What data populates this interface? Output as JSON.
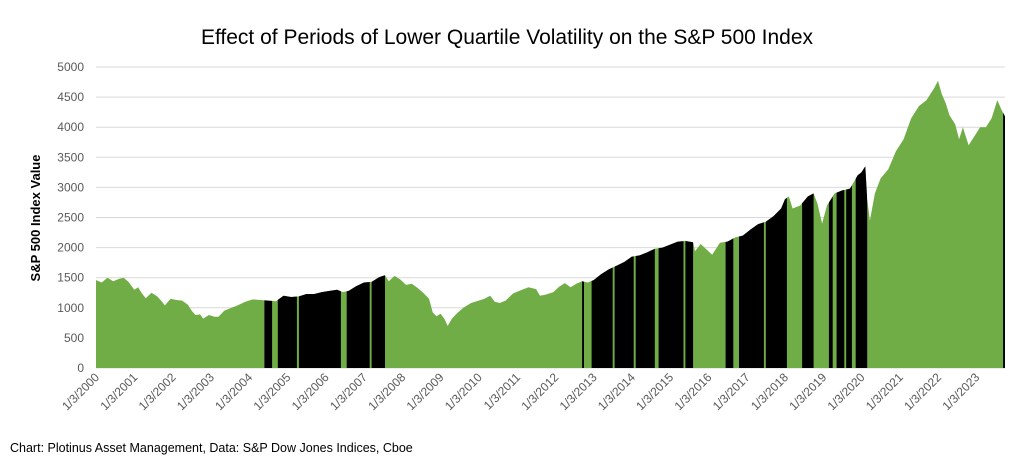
{
  "chart_data": {
    "type": "area",
    "title": "Effect of Periods of Lower Quartile Volatility on the S&P 500 Index",
    "ylabel": "S&P 500 Index  Value",
    "xlabel": "",
    "ylim": [
      0,
      5000
    ],
    "yticks": [
      "0",
      "500",
      "1000",
      "1500",
      "2000",
      "2500",
      "3000",
      "3500",
      "4000",
      "4500",
      "5000"
    ],
    "xtick_labels": [
      "1/3/2000",
      "1/3/2001",
      "1/3/2002",
      "1/3/2003",
      "1/3/2004",
      "1/3/2005",
      "1/3/2006",
      "1/3/2007",
      "1/3/2008",
      "1/3/2009",
      "1/3/2010",
      "1/3/2011",
      "1/3/2012",
      "1/3/2013",
      "1/3/2014",
      "1/3/2015",
      "1/3/2016",
      "1/3/2017",
      "1/3/2018",
      "1/3/2019",
      "1/3/2020",
      "1/3/2021",
      "1/3/2022",
      "1/3/2023"
    ],
    "grid": true,
    "x_range": [
      2000.0,
      2023.75
    ],
    "series": [
      {
        "color": "#70ad47",
        "x": [
          2000.0,
          2000.15,
          2000.3,
          2000.45,
          2000.6,
          2000.72,
          2000.85,
          2001.0,
          2001.1,
          2001.2,
          2001.3,
          2001.45,
          2001.6,
          2001.7,
          2001.8,
          2001.95,
          2002.1,
          2002.25,
          2002.4,
          2002.5,
          2002.6,
          2002.72,
          2002.8,
          2002.95,
          2003.1,
          2003.2,
          2003.35,
          2003.5,
          2003.7,
          2003.9,
          2004.1,
          2004.3,
          2004.5,
          2004.7,
          2004.9,
          2005.1,
          2005.3,
          2005.5,
          2005.7,
          2005.9,
          2006.1,
          2006.3,
          2006.45,
          2006.6,
          2006.8,
          2007.0,
          2007.2,
          2007.4,
          2007.55,
          2007.65,
          2007.8,
          2007.95,
          2008.1,
          2008.25,
          2008.4,
          2008.55,
          2008.7,
          2008.8,
          2008.9,
          2009.0,
          2009.1,
          2009.19,
          2009.3,
          2009.45,
          2009.6,
          2009.8,
          2010.0,
          2010.15,
          2010.3,
          2010.42,
          2010.55,
          2010.7,
          2010.9,
          2011.1,
          2011.3,
          2011.5,
          2011.6,
          2011.75,
          2011.95,
          2012.1,
          2012.25,
          2012.4,
          2012.55,
          2012.7,
          2012.85,
          2013.0,
          2013.2,
          2013.4,
          2013.6,
          2013.8,
          2014.0,
          2014.2,
          2014.4,
          2014.6,
          2014.8,
          2015.0,
          2015.2,
          2015.4,
          2015.6,
          2015.65,
          2015.8,
          2016.0,
          2016.1,
          2016.3,
          2016.5,
          2016.7,
          2016.9,
          2017.1,
          2017.3,
          2017.5,
          2017.7,
          2017.9,
          2018.0,
          2018.1,
          2018.2,
          2018.4,
          2018.6,
          2018.75,
          2018.85,
          2018.97,
          2019.1,
          2019.3,
          2019.5,
          2019.7,
          2019.9,
          2020.0,
          2020.1,
          2020.15,
          2020.22,
          2020.35,
          2020.5,
          2020.7,
          2020.9,
          2021.1,
          2021.3,
          2021.5,
          2021.7,
          2021.9,
          2022.0,
          2022.1,
          2022.2,
          2022.3,
          2022.45,
          2022.55,
          2022.65,
          2022.8,
          2022.95,
          2023.1,
          2023.25,
          2023.4,
          2023.55,
          2023.65,
          2023.75
        ],
        "y": [
          1460,
          1420,
          1500,
          1440,
          1480,
          1500,
          1430,
          1300,
          1340,
          1240,
          1160,
          1250,
          1190,
          1120,
          1040,
          1150,
          1130,
          1120,
          1050,
          950,
          880,
          890,
          820,
          880,
          850,
          850,
          950,
          990,
          1040,
          1100,
          1140,
          1130,
          1120,
          1110,
          1200,
          1180,
          1190,
          1230,
          1230,
          1260,
          1280,
          1300,
          1260,
          1280,
          1360,
          1420,
          1430,
          1510,
          1540,
          1440,
          1530,
          1470,
          1380,
          1400,
          1330,
          1250,
          1150,
          920,
          860,
          900,
          820,
          700,
          820,
          920,
          1000,
          1080,
          1120,
          1150,
          1200,
          1100,
          1080,
          1120,
          1240,
          1290,
          1340,
          1310,
          1200,
          1220,
          1260,
          1350,
          1410,
          1340,
          1400,
          1440,
          1420,
          1460,
          1560,
          1640,
          1700,
          1760,
          1850,
          1870,
          1920,
          1980,
          2000,
          2050,
          2100,
          2110,
          2090,
          1940,
          2060,
          1940,
          1880,
          2080,
          2100,
          2170,
          2200,
          2300,
          2390,
          2430,
          2520,
          2650,
          2800,
          2850,
          2650,
          2700,
          2850,
          2900,
          2730,
          2400,
          2700,
          2900,
          2950,
          2980,
          3200,
          3250,
          3350,
          2800,
          2450,
          2900,
          3150,
          3300,
          3600,
          3800,
          4150,
          4350,
          4450,
          4650,
          4770,
          4550,
          4400,
          4200,
          4050,
          3800,
          4000,
          3700,
          3850,
          4000,
          4000,
          4150,
          4450,
          4300,
          4180
        ],
        "black_periods": [
          [
            2004.4,
            2004.6
          ],
          [
            2004.75,
            2005.25
          ],
          [
            2005.3,
            2005.55
          ],
          [
            2005.55,
            2006.4
          ],
          [
            2006.55,
            2007.15
          ],
          [
            2007.2,
            2007.55
          ],
          [
            2012.7,
            2012.75
          ],
          [
            2012.95,
            2013.5
          ],
          [
            2013.55,
            2014.05
          ],
          [
            2014.1,
            2014.6
          ],
          [
            2014.7,
            2015.35
          ],
          [
            2015.4,
            2015.6
          ],
          [
            2016.45,
            2016.65
          ],
          [
            2016.8,
            2017.45
          ],
          [
            2017.5,
            2018.05
          ],
          [
            2018.45,
            2018.75
          ],
          [
            2019.15,
            2019.25
          ],
          [
            2019.35,
            2019.55
          ],
          [
            2019.6,
            2019.75
          ],
          [
            2019.85,
            2020.15
          ],
          [
            2023.7,
            2023.75
          ]
        ]
      }
    ]
  },
  "source_note": "Chart: Plotinus Asset Management, Data: S&P Dow Jones Indices, Cboe"
}
